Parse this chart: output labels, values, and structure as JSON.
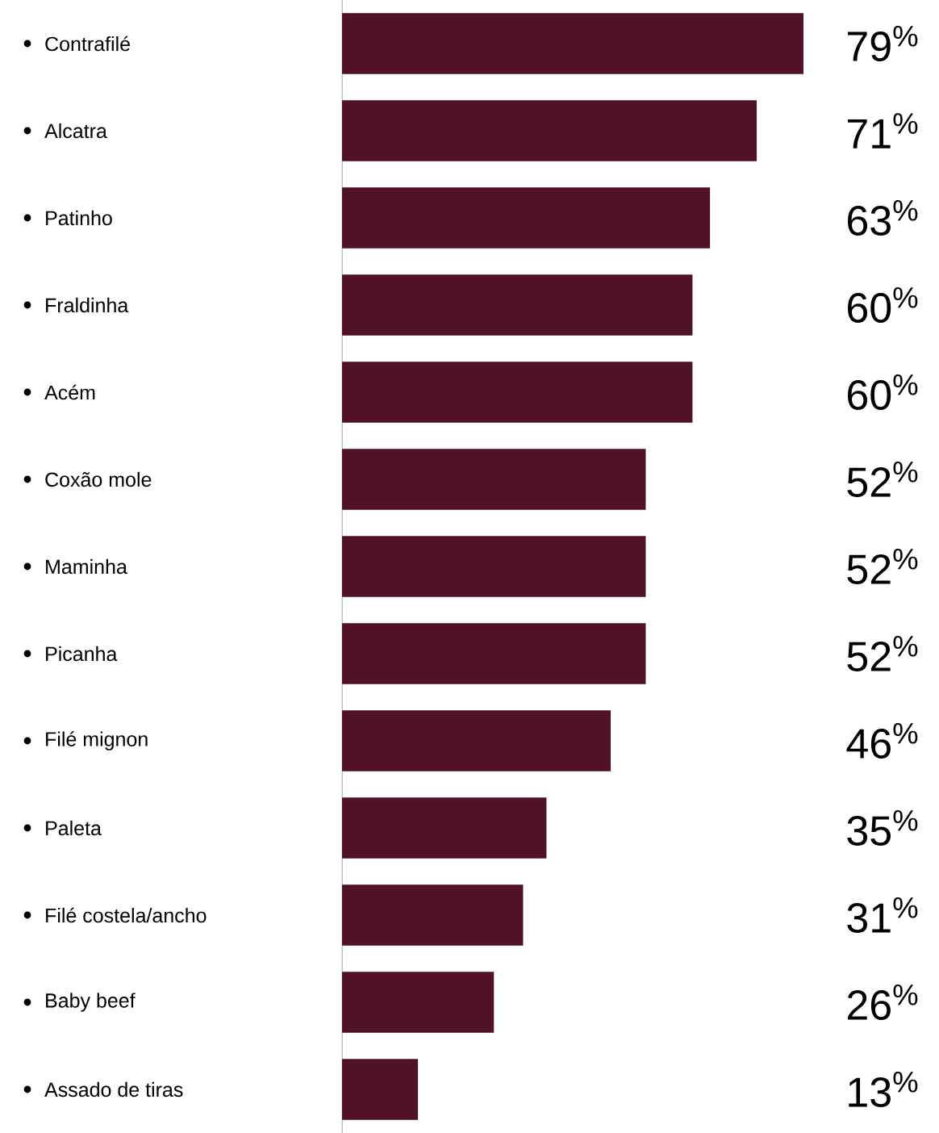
{
  "chart_data": {
    "type": "bar",
    "orientation": "horizontal",
    "categories": [
      "Contrafilé",
      "Alcatra",
      "Patinho",
      "Fraldinha",
      "Acém",
      "Coxão mole",
      "Maminha",
      "Picanha",
      "Filé mignon",
      "Paleta",
      "Filé costela/ancho",
      "Baby beef",
      "Assado de tiras"
    ],
    "values": [
      79,
      71,
      63,
      60,
      60,
      52,
      52,
      52,
      46,
      35,
      31,
      26,
      13
    ],
    "value_labels": [
      "79$^{%}$",
      "71$^{%}$",
      "63$^{%}$",
      "60$^{%}$",
      "60$^{%}$",
      "52$^{%}$",
      "52$^{%}$",
      "52$^{%}$",
      "46$^{%}$",
      "35$^{%}$",
      "31$^{%}$",
      "26$^{%}$",
      "13$^{%}$"
    ],
    "color": "#4f1229",
    "xlim": [
      0,
      79
    ],
    "tick_labels": "y"
  }
}
